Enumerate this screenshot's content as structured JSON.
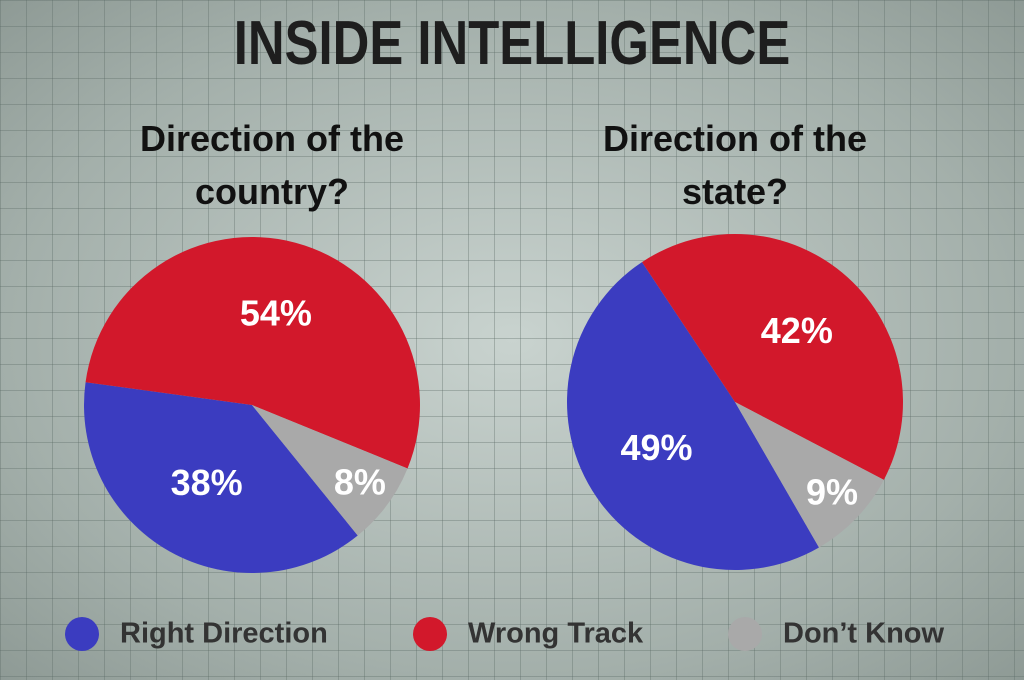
{
  "title": "INSIDE INTELLIGENCE",
  "chart_data": [
    {
      "type": "pie",
      "title": "Direction of the country?",
      "categories": [
        "Right Direction",
        "Wrong Track",
        "Don’t Know"
      ],
      "values": [
        38,
        54,
        8
      ],
      "value_labels": [
        "38%",
        "54%",
        "8%"
      ],
      "colors": [
        "#3b3cc0",
        "#d2182b",
        "#a9a9a9"
      ]
    },
    {
      "type": "pie",
      "title": "Direction of the state?",
      "categories": [
        "Right Direction",
        "Wrong Track",
        "Don’t Know"
      ],
      "values": [
        49,
        42,
        9
      ],
      "value_labels": [
        "49%",
        "42%",
        "9%"
      ],
      "colors": [
        "#3b3cc0",
        "#d2182b",
        "#a9a9a9"
      ]
    }
  ]
}
